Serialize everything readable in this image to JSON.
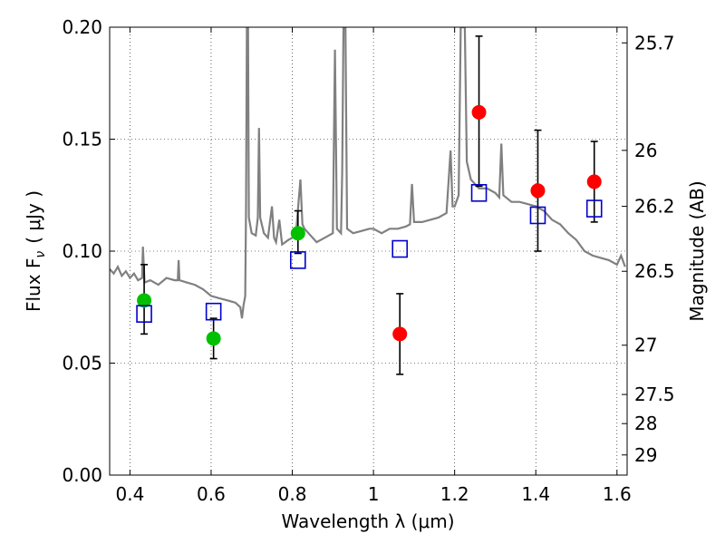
{
  "chart_data": {
    "type": "scatter",
    "xlabel": "Wavelength  λ (μm)",
    "ylabel": "Flux  F",
    "ylabel_sub": "ν",
    "ylabel_unit": "( μJy )",
    "y2label": "Magnitude (AB)",
    "xlim": [
      0.35,
      1.625
    ],
    "ylim": [
      0.0,
      0.2
    ],
    "grid": true,
    "x_ticks": [
      {
        "value": 0.4,
        "label": "0.4"
      },
      {
        "value": 0.6,
        "label": "0.6"
      },
      {
        "value": 0.8,
        "label": "0.8"
      },
      {
        "value": 1.0,
        "label": "1"
      },
      {
        "value": 1.2,
        "label": "1.2"
      },
      {
        "value": 1.4,
        "label": "1.4"
      },
      {
        "value": 1.6,
        "label": "1.6"
      }
    ],
    "y_ticks": [
      {
        "value": 0.0,
        "label": "0.00"
      },
      {
        "value": 0.05,
        "label": "0.05"
      },
      {
        "value": 0.1,
        "label": "0.10"
      },
      {
        "value": 0.15,
        "label": "0.15"
      },
      {
        "value": 0.2,
        "label": "0.20"
      }
    ],
    "y2_ticks": [
      {
        "label": "25.7",
        "flux": 0.193
      },
      {
        "label": "26",
        "flux": 0.145
      },
      {
        "label": "26.2",
        "flux": 0.12
      },
      {
        "label": "26.5",
        "flux": 0.091
      },
      {
        "label": "27",
        "flux": 0.058
      },
      {
        "label": "27.5",
        "flux": 0.036
      },
      {
        "label": "28",
        "flux": 0.023
      },
      {
        "label": "29",
        "flux": 0.009
      }
    ],
    "series": [
      {
        "marker": "circle",
        "color": "#00c000",
        "points": [
          {
            "x": 0.435,
            "y": 0.078,
            "err": [
              0.063,
              0.094
            ]
          },
          {
            "x": 0.606,
            "y": 0.061,
            "err": [
              0.052,
              0.07
            ]
          },
          {
            "x": 0.814,
            "y": 0.108,
            "err": [
              0.099,
              0.118
            ]
          }
        ]
      },
      {
        "marker": "circle",
        "color": "#ff0000",
        "points": [
          {
            "x": 1.065,
            "y": 0.063,
            "err": [
              0.045,
              0.081
            ]
          },
          {
            "x": 1.26,
            "y": 0.162,
            "err": [
              0.129,
              0.196
            ]
          },
          {
            "x": 1.405,
            "y": 0.127,
            "err": [
              0.1,
              0.154
            ]
          },
          {
            "x": 1.544,
            "y": 0.131,
            "err": [
              0.113,
              0.149
            ]
          }
        ]
      },
      {
        "marker": "open-square",
        "color": "#0000cc",
        "points": [
          {
            "x": 0.435,
            "y": 0.072
          },
          {
            "x": 0.606,
            "y": 0.073
          },
          {
            "x": 0.814,
            "y": 0.096
          },
          {
            "x": 1.065,
            "y": 0.101
          },
          {
            "x": 1.26,
            "y": 0.126
          },
          {
            "x": 1.405,
            "y": 0.116
          },
          {
            "x": 1.544,
            "y": 0.119
          }
        ]
      }
    ],
    "spectrum": {
      "color": "#808080",
      "points": [
        [
          0.35,
          0.092
        ],
        [
          0.36,
          0.09
        ],
        [
          0.37,
          0.093
        ],
        [
          0.38,
          0.089
        ],
        [
          0.39,
          0.091
        ],
        [
          0.4,
          0.088
        ],
        [
          0.41,
          0.09
        ],
        [
          0.42,
          0.087
        ],
        [
          0.43,
          0.088
        ],
        [
          0.432,
          0.102
        ],
        [
          0.436,
          0.086
        ],
        [
          0.45,
          0.087
        ],
        [
          0.47,
          0.085
        ],
        [
          0.49,
          0.088
        ],
        [
          0.51,
          0.087
        ],
        [
          0.518,
          0.087
        ],
        [
          0.52,
          0.096
        ],
        [
          0.522,
          0.087
        ],
        [
          0.54,
          0.086
        ],
        [
          0.56,
          0.085
        ],
        [
          0.58,
          0.083
        ],
        [
          0.6,
          0.08
        ],
        [
          0.62,
          0.079
        ],
        [
          0.64,
          0.078
        ],
        [
          0.66,
          0.077
        ],
        [
          0.672,
          0.075
        ],
        [
          0.676,
          0.07
        ],
        [
          0.68,
          0.076
        ],
        [
          0.684,
          0.08
        ],
        [
          0.686,
          0.12
        ],
        [
          0.688,
          0.2
        ],
        [
          0.691,
          0.2
        ],
        [
          0.693,
          0.115
        ],
        [
          0.7,
          0.108
        ],
        [
          0.71,
          0.107
        ],
        [
          0.715,
          0.115
        ],
        [
          0.718,
          0.155
        ],
        [
          0.721,
          0.115
        ],
        [
          0.73,
          0.108
        ],
        [
          0.74,
          0.106
        ],
        [
          0.75,
          0.12
        ],
        [
          0.755,
          0.106
        ],
        [
          0.76,
          0.104
        ],
        [
          0.768,
          0.114
        ],
        [
          0.775,
          0.103
        ],
        [
          0.79,
          0.105
        ],
        [
          0.8,
          0.106
        ],
        [
          0.81,
          0.11
        ],
        [
          0.82,
          0.132
        ],
        [
          0.825,
          0.112
        ],
        [
          0.83,
          0.11
        ],
        [
          0.84,
          0.108
        ],
        [
          0.86,
          0.104
        ],
        [
          0.88,
          0.106
        ],
        [
          0.9,
          0.108
        ],
        [
          0.905,
          0.19
        ],
        [
          0.91,
          0.11
        ],
        [
          0.92,
          0.108
        ],
        [
          0.923,
          0.135
        ],
        [
          0.926,
          0.2
        ],
        [
          0.931,
          0.2
        ],
        [
          0.935,
          0.11
        ],
        [
          0.95,
          0.108
        ],
        [
          0.97,
          0.109
        ],
        [
          0.99,
          0.11
        ],
        [
          1.0,
          0.11
        ],
        [
          1.02,
          0.108
        ],
        [
          1.04,
          0.11
        ],
        [
          1.06,
          0.11
        ],
        [
          1.08,
          0.111
        ],
        [
          1.09,
          0.112
        ],
        [
          1.095,
          0.13
        ],
        [
          1.1,
          0.113
        ],
        [
          1.12,
          0.113
        ],
        [
          1.14,
          0.114
        ],
        [
          1.16,
          0.115
        ],
        [
          1.18,
          0.117
        ],
        [
          1.19,
          0.145
        ],
        [
          1.195,
          0.12
        ],
        [
          1.2,
          0.12
        ],
        [
          1.21,
          0.125
        ],
        [
          1.215,
          0.2
        ],
        [
          1.225,
          0.2
        ],
        [
          1.23,
          0.14
        ],
        [
          1.24,
          0.132
        ],
        [
          1.26,
          0.128
        ],
        [
          1.28,
          0.128
        ],
        [
          1.3,
          0.126
        ],
        [
          1.31,
          0.124
        ],
        [
          1.315,
          0.148
        ],
        [
          1.32,
          0.125
        ],
        [
          1.34,
          0.122
        ],
        [
          1.36,
          0.122
        ],
        [
          1.38,
          0.121
        ],
        [
          1.4,
          0.12
        ],
        [
          1.42,
          0.118
        ],
        [
          1.44,
          0.114
        ],
        [
          1.46,
          0.112
        ],
        [
          1.48,
          0.108
        ],
        [
          1.5,
          0.105
        ],
        [
          1.52,
          0.1
        ],
        [
          1.54,
          0.098
        ],
        [
          1.56,
          0.097
        ],
        [
          1.58,
          0.096
        ],
        [
          1.6,
          0.094
        ],
        [
          1.61,
          0.098
        ],
        [
          1.62,
          0.093
        ]
      ]
    }
  }
}
